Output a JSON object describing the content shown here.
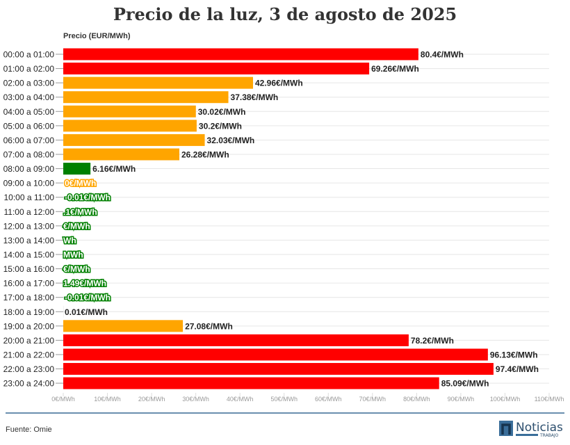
{
  "chart_data": {
    "type": "bar",
    "orientation": "horizontal",
    "title": "Precio de la luz, 3 de agosto de 2025",
    "ylabel": "Precio (EUR/MWh)",
    "xlim": [
      0,
      110
    ],
    "xticks": [
      "0€/MWh",
      "10€/MWh",
      "20€/MWh",
      "30€/MWh",
      "40€/MWh",
      "50€/MWh",
      "60€/MWh",
      "70€/MWh",
      "80€/MWh",
      "90€/MWh",
      "100€/MWh",
      "110€/MWh"
    ],
    "grid": true,
    "categories": [
      "00:00 a 01:00",
      "01:00 a 02:00",
      "02:00 a 03:00",
      "03:00 a 04:00",
      "04:00 a 05:00",
      "05:00 a 06:00",
      "06:00 a 07:00",
      "07:00 a 08:00",
      "08:00 a 09:00",
      "09:00 a 10:00",
      "10:00 a 11:00",
      "11:00 a 12:00",
      "12:00 a 13:00",
      "13:00 a 14:00",
      "14:00 a 15:00",
      "15:00 a 16:00",
      "16:00 a 17:00",
      "17:00 a 18:00",
      "18:00 a 19:00",
      "19:00 a 20:00",
      "20:00 a 21:00",
      "21:00 a 22:00",
      "22:00 a 23:00",
      "23:00 a 24:00"
    ],
    "values": [
      80.4,
      69.26,
      42.96,
      37.38,
      30.02,
      30.2,
      32.03,
      26.28,
      6.16,
      0,
      -0.01,
      null,
      null,
      null,
      null,
      null,
      null,
      -0.01,
      0.01,
      27.08,
      78.2,
      96.13,
      97.4,
      85.09
    ],
    "labels": [
      "80.4€/MWh",
      "69.26€/MWh",
      "42.96€/MWh",
      "37.38€/MWh",
      "30.02€/MWh",
      "30.2€/MWh",
      "32.03€/MWh",
      "26.28€/MWh",
      "6.16€/MWh",
      "0€/MWh",
      "-0.01€/MWh",
      ".1€/MWh",
      "€/MWh",
      "Wh",
      "MWh",
      "€/MWh",
      "1.49€/MWh",
      "-0.01€/MWh",
      "0.01€/MWh",
      "27.08€/MWh",
      "78.2€/MWh",
      "96.13€/MWh",
      "97.4€/MWh",
      "85.09€/MWh"
    ],
    "colors": [
      "#ff0000",
      "#ff0000",
      "#ffa500",
      "#ffa500",
      "#ffa500",
      "#ffa500",
      "#ffa500",
      "#ffa500",
      "#008000",
      "#ffa500",
      "#008000",
      "#008000",
      "#008000",
      "#008000",
      "#008000",
      "#008000",
      "#008000",
      "#008000",
      "#333333",
      "#ffa500",
      "#ff0000",
      "#ff0000",
      "#ff0000",
      "#ff0000"
    ]
  },
  "footer": {
    "source": "Fuente: Omie",
    "logo_text": "Noticias",
    "logo_sub": "TRABAJO"
  }
}
